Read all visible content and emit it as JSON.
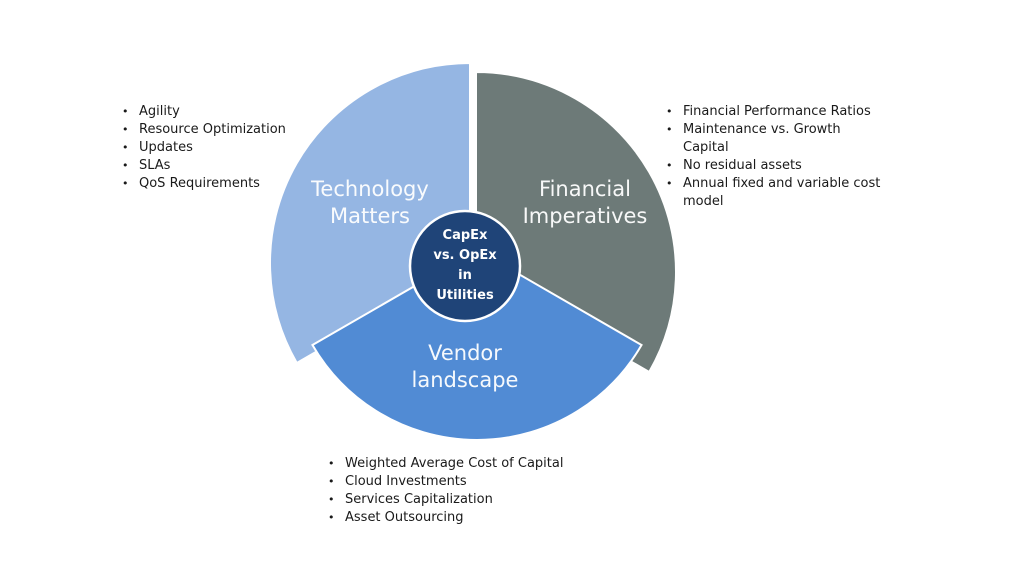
{
  "colors": {
    "technology": "#95b6e3",
    "financial": "#6d7a78",
    "vendor": "#518bd4",
    "center": "#1f4478"
  },
  "center": {
    "lines": [
      "CapEx",
      "vs. OpEx",
      "in",
      "Utilities"
    ]
  },
  "segments": {
    "technology": {
      "line1": "Technology",
      "line2": "Matters",
      "bullets": [
        "Agility",
        "Resource Optimization",
        "Updates",
        "SLAs",
        "QoS Requirements"
      ]
    },
    "financial": {
      "line1": "Financial",
      "line2": "Imperatives",
      "bullets": [
        "Financial Performance Ratios",
        "Maintenance vs. Growth Capital",
        "No residual assets",
        "Annual fixed and variable cost model"
      ]
    },
    "vendor": {
      "line1": "Vendor",
      "line2": "landscape",
      "bullets": [
        "Weighted Average Cost of Capital",
        "Cloud Investments",
        "Services Capitalization",
        "Asset Outsourcing"
      ]
    }
  }
}
